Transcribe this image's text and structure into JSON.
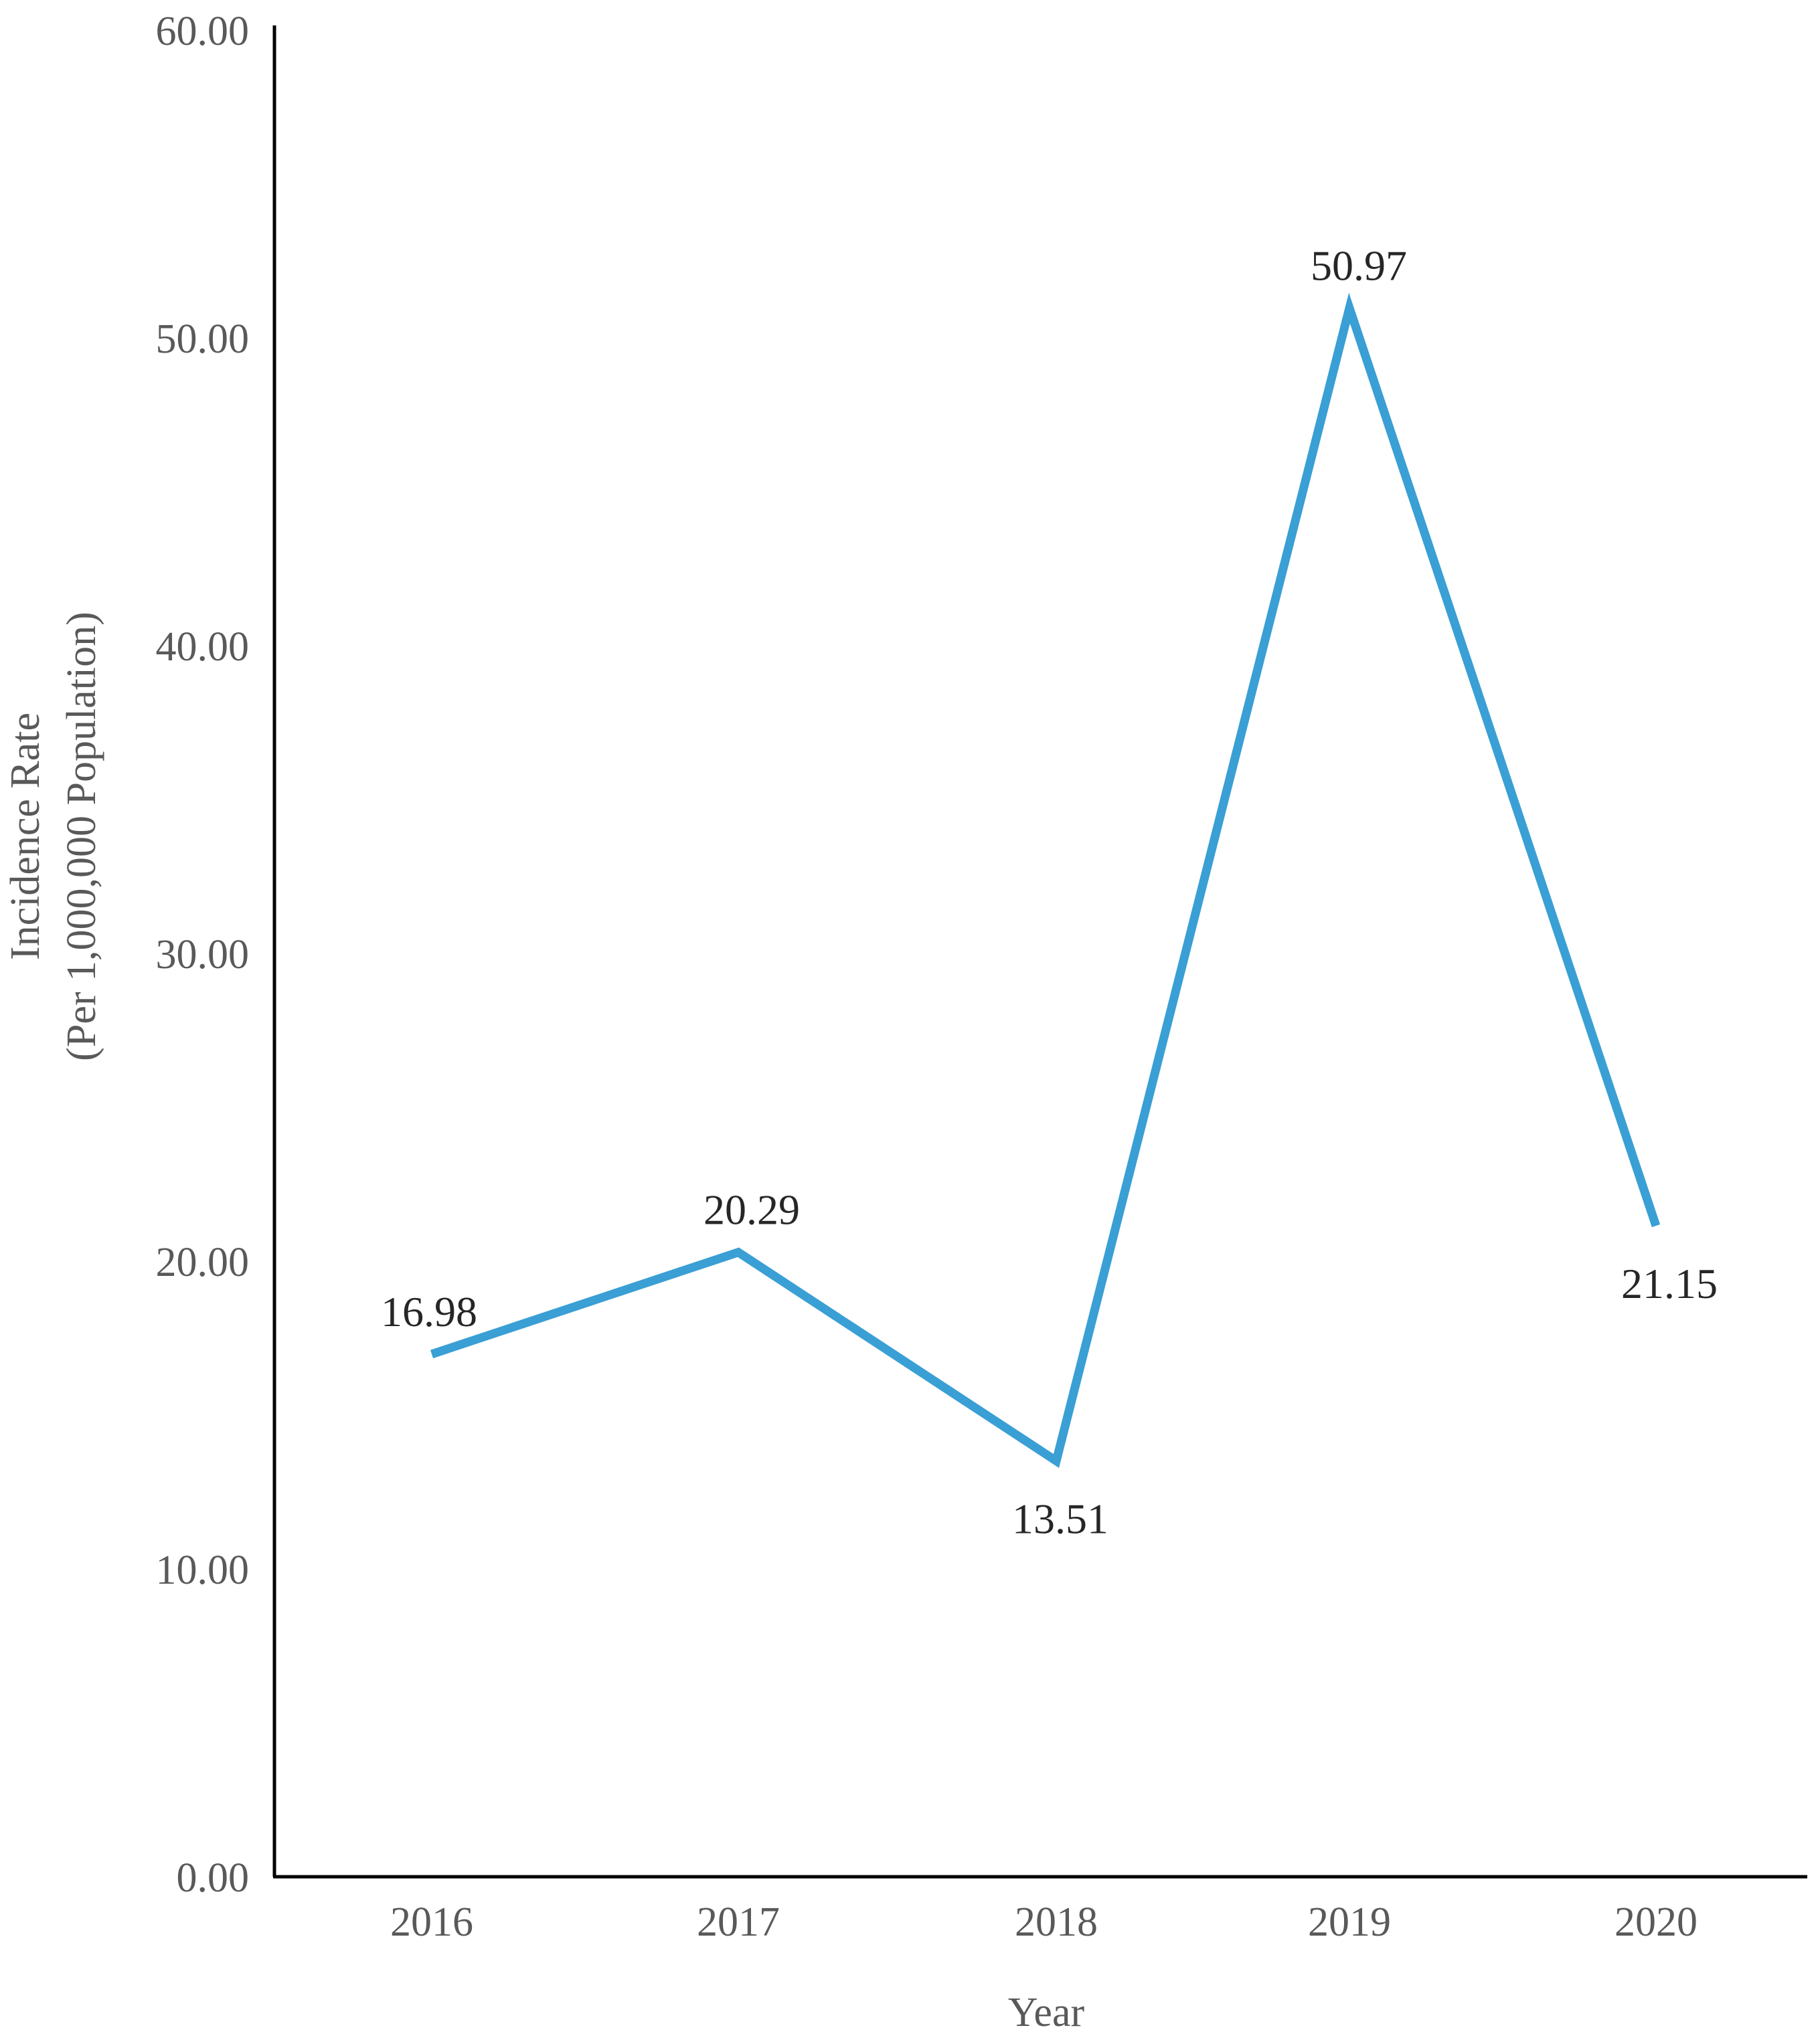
{
  "chart_data": {
    "type": "line",
    "title": "",
    "xlabel": "Year",
    "ylabel": [
      "Incidence Rate",
      "(Per 1,000,000 Population)"
    ],
    "x": [
      "2016",
      "2017",
      "2018",
      "2019",
      "2020"
    ],
    "series": [
      {
        "values": [
          16.98,
          20.29,
          13.51,
          50.97,
          21.15
        ],
        "color": "#3a9fd4"
      }
    ],
    "data_labels": [
      "16.98",
      "20.29",
      "13.51",
      "50.97",
      "21.15"
    ],
    "data_label_side": [
      "above",
      "above",
      "below",
      "above",
      "below"
    ],
    "y_ticks": [
      "0.00",
      "10.00",
      "20.00",
      "30.00",
      "40.00",
      "50.00",
      "60.00"
    ],
    "y_tick_values": [
      0,
      10,
      20,
      30,
      40,
      50,
      60
    ],
    "ylim": [
      0,
      60
    ],
    "grid": false,
    "legend": "none",
    "axis_color": "#000000"
  }
}
